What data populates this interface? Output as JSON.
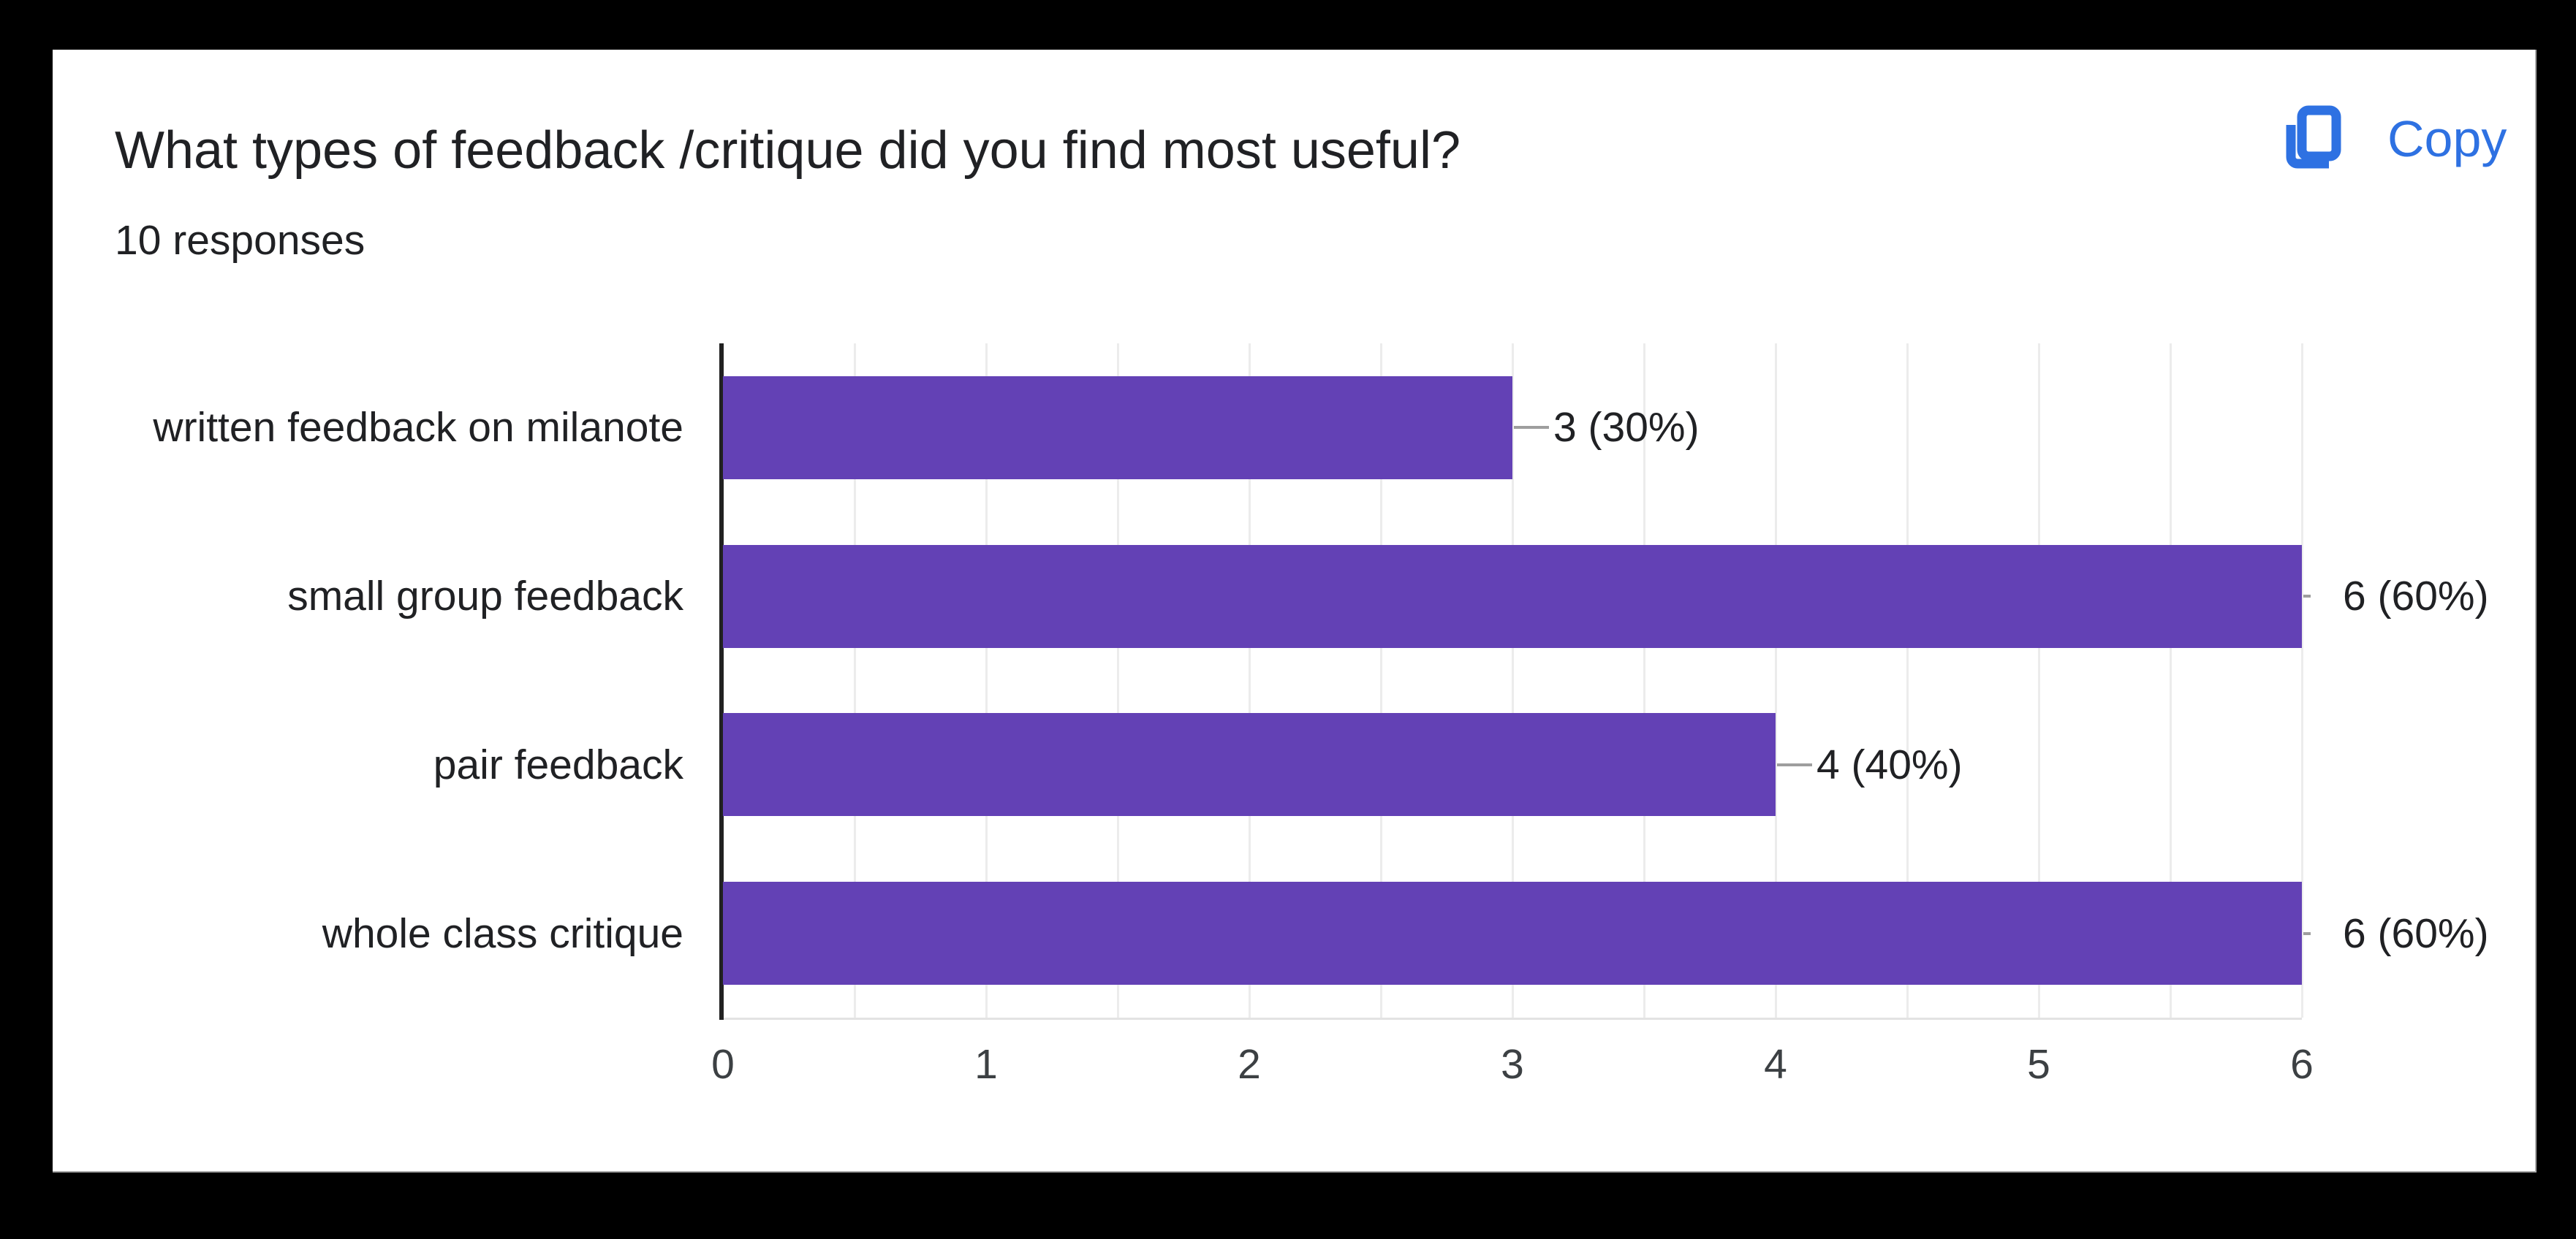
{
  "header": {
    "title": "What types of feedback /critique did you find most useful?",
    "subtitle": "10 responses",
    "copy_label": "Copy"
  },
  "colors": {
    "background": "#000000",
    "card": "#ffffff",
    "bar": "#6341b5",
    "accent_blue": "#2e71e2",
    "text": "#202124",
    "tick_text": "#3c4043",
    "grid": "#ececec",
    "axis": "#212121",
    "plot_bottom_border": "#e3e3e3",
    "leader": "#9e9e9e"
  },
  "icons": {
    "copy_icon": "copy-icon"
  },
  "chart_data": {
    "type": "bar",
    "orientation": "horizontal",
    "title": "What types of feedback /critique did you find most useful?",
    "subtitle": "10 responses",
    "total_responses": 10,
    "categories": [
      "written feedback on milanote",
      "small group feedback",
      "pair feedback",
      "whole class critique"
    ],
    "values": [
      3,
      6,
      4,
      6
    ],
    "value_labels": [
      "3 (30%)",
      "6 (60%)",
      "4 (40%)",
      "6 (60%)"
    ],
    "xlim": [
      0,
      6
    ],
    "x_ticks": [
      "0",
      "1",
      "2",
      "3",
      "4",
      "5",
      "6"
    ],
    "grid_step": 0.5,
    "grid": true,
    "legend": "none",
    "bar_color": "#6341b5"
  }
}
